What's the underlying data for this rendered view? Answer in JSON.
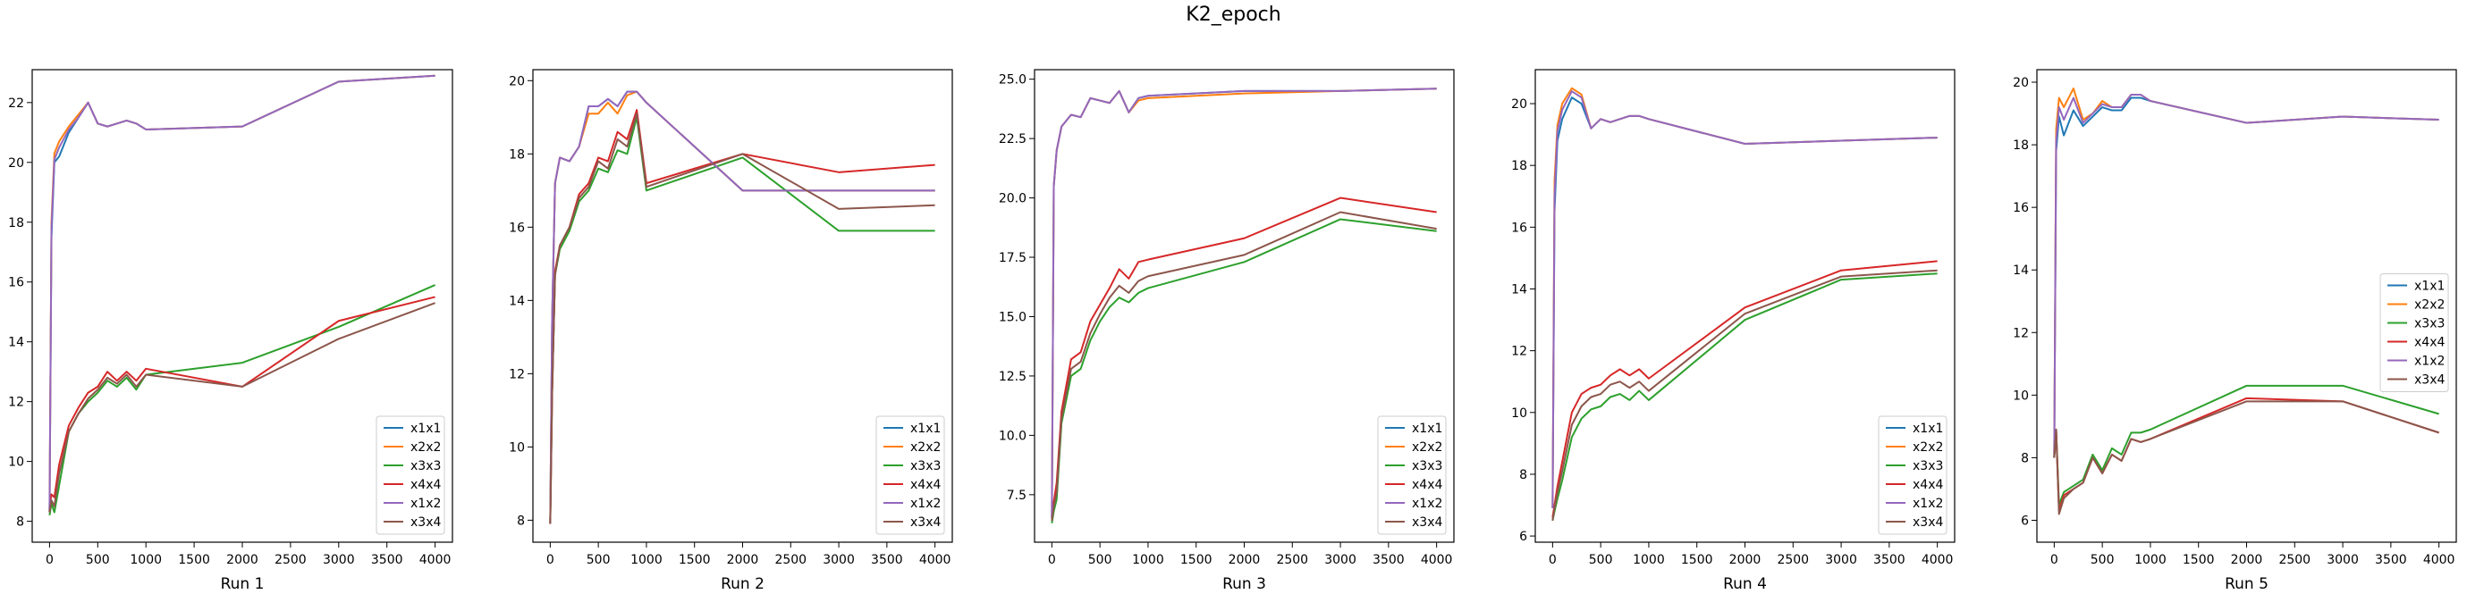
{
  "figure": {
    "title": "K2_epoch"
  },
  "colors": {
    "x1x1": "#1f77b4",
    "x2x2": "#ff7f0e",
    "x3x3": "#2ca02c",
    "x4x4": "#d62728",
    "x1x2": "#9467bd",
    "x3x4": "#8c564b"
  },
  "chart_data": [
    {
      "type": "line",
      "xlabel": "Run 1",
      "ylabel": "",
      "xlim": [
        -180,
        4180
      ],
      "ylim": [
        7.3,
        23.1
      ],
      "xticks": [
        0,
        500,
        1000,
        1500,
        2000,
        2500,
        3000,
        3500,
        4000
      ],
      "yticks": [
        8,
        10,
        12,
        14,
        16,
        18,
        20,
        22
      ],
      "legend": "lower-right",
      "grid": false,
      "x": [
        0,
        20,
        50,
        100,
        200,
        300,
        400,
        500,
        600,
        700,
        800,
        900,
        1000,
        2000,
        3000,
        4000
      ],
      "series": [
        {
          "name": "x1x1",
          "values": [
            8.3,
            17.5,
            20.0,
            20.2,
            21.0,
            21.5,
            22.0,
            21.3,
            21.2,
            21.3,
            21.4,
            21.3,
            21.1,
            21.2,
            22.7,
            22.9
          ]
        },
        {
          "name": "x2x2",
          "values": [
            8.3,
            18.0,
            20.3,
            20.7,
            21.2,
            21.6,
            22.0,
            21.3,
            21.2,
            21.3,
            21.4,
            21.3,
            21.1,
            21.2,
            22.7,
            22.9
          ]
        },
        {
          "name": "x3x3",
          "values": [
            8.2,
            8.6,
            8.3,
            9.2,
            11.0,
            11.6,
            12.0,
            12.3,
            12.7,
            12.5,
            12.8,
            12.4,
            12.9,
            13.3,
            14.5,
            15.9
          ]
        },
        {
          "name": "x4x4",
          "values": [
            8.5,
            8.9,
            8.8,
            9.9,
            11.2,
            11.8,
            12.3,
            12.5,
            13.0,
            12.7,
            13.0,
            12.7,
            13.1,
            12.5,
            14.7,
            15.5
          ]
        },
        {
          "name": "x1x2",
          "values": [
            8.3,
            17.8,
            20.1,
            20.5,
            21.1,
            21.5,
            22.0,
            21.3,
            21.2,
            21.3,
            21.4,
            21.3,
            21.1,
            21.2,
            22.7,
            22.9
          ]
        },
        {
          "name": "x3x4",
          "values": [
            8.3,
            8.7,
            8.5,
            9.6,
            11.0,
            11.6,
            12.1,
            12.4,
            12.8,
            12.6,
            12.9,
            12.5,
            12.9,
            12.5,
            14.1,
            15.3
          ]
        }
      ]
    },
    {
      "type": "line",
      "xlabel": "Run 2",
      "ylabel": "",
      "xlim": [
        -180,
        4180
      ],
      "ylim": [
        7.4,
        20.3
      ],
      "xticks": [
        0,
        500,
        1000,
        1500,
        2000,
        2500,
        3000,
        3500,
        4000
      ],
      "yticks": [
        8,
        10,
        12,
        14,
        16,
        18,
        20
      ],
      "legend": "lower-right",
      "grid": false,
      "x": [
        0,
        20,
        50,
        100,
        200,
        300,
        400,
        500,
        600,
        700,
        800,
        900,
        1000,
        2000,
        3000,
        4000
      ],
      "series": [
        {
          "name": "x1x1",
          "values": [
            7.9,
            13.5,
            17.2,
            17.9,
            17.8,
            18.2,
            19.3,
            19.3,
            19.5,
            19.3,
            19.7,
            19.7,
            19.4,
            17.0,
            17.0,
            17.0
          ]
        },
        {
          "name": "x2x2",
          "values": [
            7.9,
            13.5,
            17.2,
            17.9,
            17.8,
            18.2,
            19.1,
            19.1,
            19.4,
            19.1,
            19.6,
            19.7,
            19.4,
            17.0,
            17.0,
            17.0
          ]
        },
        {
          "name": "x3x3",
          "values": [
            7.9,
            11.5,
            14.7,
            15.4,
            15.9,
            16.7,
            17.0,
            17.6,
            17.5,
            18.1,
            18.0,
            19.0,
            17.0,
            17.9,
            15.9,
            15.9
          ]
        },
        {
          "name": "x4x4",
          "values": [
            7.9,
            11.5,
            14.8,
            15.5,
            16.0,
            16.9,
            17.2,
            17.9,
            17.8,
            18.6,
            18.4,
            19.2,
            17.2,
            18.0,
            17.5,
            17.7
          ]
        },
        {
          "name": "x1x2",
          "values": [
            7.9,
            13.5,
            17.2,
            17.9,
            17.8,
            18.2,
            19.3,
            19.3,
            19.5,
            19.3,
            19.7,
            19.7,
            19.4,
            17.0,
            17.0,
            17.0
          ]
        },
        {
          "name": "x3x4",
          "values": [
            7.9,
            11.5,
            14.7,
            15.5,
            16.0,
            16.8,
            17.1,
            17.8,
            17.6,
            18.4,
            18.2,
            19.1,
            17.1,
            18.0,
            16.5,
            16.6
          ]
        }
      ]
    },
    {
      "type": "line",
      "xlabel": "Run 3",
      "ylabel": "",
      "xlim": [
        -180,
        4180
      ],
      "ylim": [
        5.5,
        25.4
      ],
      "xticks": [
        0,
        500,
        1000,
        1500,
        2000,
        2500,
        3000,
        3500,
        4000
      ],
      "yticks": [
        7.5,
        10.0,
        12.5,
        15.0,
        17.5,
        20.0,
        22.5,
        25.0
      ],
      "legend": "lower-right",
      "grid": false,
      "x": [
        0,
        20,
        50,
        100,
        200,
        300,
        400,
        500,
        600,
        700,
        800,
        900,
        1000,
        2000,
        3000,
        4000
      ],
      "series": [
        {
          "name": "x1x1",
          "values": [
            6.5,
            20.5,
            22.0,
            23.0,
            23.5,
            23.4,
            24.2,
            24.1,
            24.0,
            24.5,
            23.6,
            24.2,
            24.3,
            24.5,
            24.5,
            24.6
          ]
        },
        {
          "name": "x2x2",
          "values": [
            6.5,
            20.5,
            22.0,
            23.0,
            23.5,
            23.4,
            24.2,
            24.1,
            24.0,
            24.5,
            23.6,
            24.1,
            24.2,
            24.4,
            24.5,
            24.6
          ]
        },
        {
          "name": "x3x3",
          "values": [
            6.3,
            6.8,
            7.3,
            10.5,
            12.5,
            12.8,
            14.0,
            14.8,
            15.4,
            15.8,
            15.6,
            16.0,
            16.2,
            17.3,
            19.1,
            18.6
          ]
        },
        {
          "name": "x4x4",
          "values": [
            6.6,
            7.2,
            8.0,
            11.0,
            13.2,
            13.5,
            14.8,
            15.5,
            16.2,
            17.0,
            16.6,
            17.3,
            17.4,
            18.3,
            20.0,
            19.4
          ]
        },
        {
          "name": "x1x2",
          "values": [
            6.5,
            20.5,
            22.0,
            23.0,
            23.5,
            23.4,
            24.2,
            24.1,
            24.0,
            24.5,
            23.6,
            24.2,
            24.3,
            24.5,
            24.5,
            24.6
          ]
        },
        {
          "name": "x3x4",
          "values": [
            6.4,
            7.0,
            7.6,
            10.7,
            12.8,
            13.1,
            14.3,
            15.1,
            15.8,
            16.3,
            16.0,
            16.5,
            16.7,
            17.6,
            19.4,
            18.7
          ]
        }
      ]
    },
    {
      "type": "line",
      "xlabel": "Run 4",
      "ylabel": "",
      "xlim": [
        -180,
        4180
      ],
      "ylim": [
        5.8,
        21.1
      ],
      "xticks": [
        0,
        500,
        1000,
        1500,
        2000,
        2500,
        3000,
        3500,
        4000
      ],
      "yticks": [
        6,
        8,
        10,
        12,
        14,
        16,
        18,
        20
      ],
      "legend": "lower-right",
      "grid": false,
      "x": [
        0,
        20,
        50,
        100,
        200,
        300,
        400,
        500,
        600,
        700,
        800,
        900,
        1000,
        2000,
        3000,
        4000
      ],
      "series": [
        {
          "name": "x1x1",
          "values": [
            6.9,
            16.5,
            18.8,
            19.5,
            20.2,
            20.0,
            19.2,
            19.5,
            19.4,
            19.5,
            19.6,
            19.6,
            19.5,
            18.7,
            18.8,
            18.9
          ]
        },
        {
          "name": "x2x2",
          "values": [
            6.9,
            17.5,
            19.3,
            20.0,
            20.5,
            20.3,
            19.2,
            19.5,
            19.4,
            19.5,
            19.6,
            19.6,
            19.5,
            18.7,
            18.8,
            18.9
          ]
        },
        {
          "name": "x3x3",
          "values": [
            6.5,
            6.8,
            7.2,
            7.8,
            9.2,
            9.8,
            10.1,
            10.2,
            10.5,
            10.6,
            10.4,
            10.7,
            10.4,
            13.0,
            14.3,
            14.5
          ]
        },
        {
          "name": "x4x4",
          "values": [
            6.6,
            7.0,
            7.6,
            8.4,
            10.0,
            10.6,
            10.8,
            10.9,
            11.2,
            11.4,
            11.2,
            11.4,
            11.1,
            13.4,
            14.6,
            14.9
          ]
        },
        {
          "name": "x1x2",
          "values": [
            6.9,
            17.0,
            19.1,
            19.8,
            20.4,
            20.2,
            19.2,
            19.5,
            19.4,
            19.5,
            19.6,
            19.6,
            19.5,
            18.7,
            18.8,
            18.9
          ]
        },
        {
          "name": "x3x4",
          "values": [
            6.5,
            6.9,
            7.4,
            8.1,
            9.6,
            10.2,
            10.5,
            10.6,
            10.9,
            11.0,
            10.8,
            11.0,
            10.7,
            13.2,
            14.4,
            14.6
          ]
        }
      ]
    },
    {
      "type": "line",
      "xlabel": "Run 5",
      "ylabel": "",
      "xlim": [
        -180,
        4180
      ],
      "ylim": [
        5.3,
        20.4
      ],
      "xticks": [
        0,
        500,
        1000,
        1500,
        2000,
        2500,
        3000,
        3500,
        4000
      ],
      "yticks": [
        6,
        8,
        10,
        12,
        14,
        16,
        18,
        20
      ],
      "legend": "center-right",
      "grid": false,
      "x": [
        0,
        20,
        50,
        100,
        200,
        300,
        400,
        500,
        600,
        700,
        800,
        900,
        1000,
        2000,
        3000,
        4000
      ],
      "series": [
        {
          "name": "x1x1",
          "values": [
            8.0,
            17.8,
            18.9,
            18.3,
            19.1,
            18.6,
            18.9,
            19.2,
            19.1,
            19.1,
            19.5,
            19.5,
            19.4,
            18.7,
            18.9,
            18.8
          ]
        },
        {
          "name": "x2x2",
          "values": [
            8.0,
            18.5,
            19.5,
            19.2,
            19.8,
            18.8,
            19.0,
            19.4,
            19.2,
            19.2,
            19.6,
            19.6,
            19.4,
            18.7,
            18.9,
            18.8
          ]
        },
        {
          "name": "x3x3",
          "values": [
            8.0,
            8.9,
            6.5,
            6.9,
            7.1,
            7.3,
            8.1,
            7.6,
            8.3,
            8.1,
            8.8,
            8.8,
            8.9,
            10.3,
            10.3,
            9.4
          ]
        },
        {
          "name": "x4x4",
          "values": [
            8.0,
            8.9,
            6.3,
            6.8,
            7.0,
            7.2,
            8.0,
            7.5,
            8.1,
            7.9,
            8.6,
            8.5,
            8.6,
            9.9,
            9.8,
            8.8
          ]
        },
        {
          "name": "x1x2",
          "values": [
            8.0,
            18.1,
            19.2,
            18.8,
            19.5,
            18.7,
            19.0,
            19.3,
            19.2,
            19.2,
            19.6,
            19.6,
            19.4,
            18.7,
            18.9,
            18.8
          ]
        },
        {
          "name": "x3x4",
          "values": [
            8.0,
            8.9,
            6.2,
            6.7,
            7.0,
            7.2,
            8.0,
            7.5,
            8.1,
            7.9,
            8.6,
            8.5,
            8.6,
            9.8,
            9.8,
            8.8
          ]
        }
      ]
    }
  ]
}
